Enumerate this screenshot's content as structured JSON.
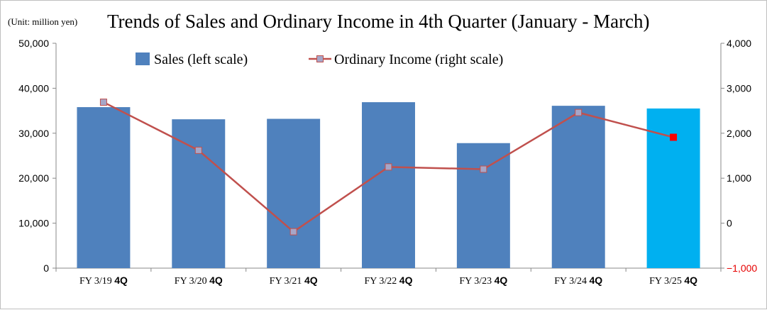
{
  "chart_data": {
    "type": "bar",
    "title": "Trends of Sales and Ordinary Income in 4th Quarter (January - March)",
    "unit_note": "(Unit: million yen)",
    "categories": [
      {
        "fy": "FY 3/19",
        "q": "4Q"
      },
      {
        "fy": "FY 3/20",
        "q": "4Q"
      },
      {
        "fy": "FY 3/21",
        "q": "4Q"
      },
      {
        "fy": "FY 3/22",
        "q": "4Q"
      },
      {
        "fy": "FY 3/23",
        "q": "4Q"
      },
      {
        "fy": "FY 3/24",
        "q": "4Q"
      },
      {
        "fy": "FY 3/25",
        "q": "4Q"
      }
    ],
    "series": [
      {
        "name": "Sales (left scale)",
        "type": "bar",
        "axis": "left",
        "values": [
          35800,
          33100,
          33200,
          36900,
          27800,
          36100,
          35500
        ],
        "color": "#4f81bd",
        "highlight_color": "#00b0f0",
        "highlight_index": 6
      },
      {
        "name": "Ordinary Income (right scale)",
        "type": "line",
        "axis": "right",
        "values": [
          2690,
          1620,
          -190,
          1250,
          1200,
          2460,
          1910
        ],
        "line_color": "#c0504d",
        "marker_color": "#a6a6c8",
        "highlight_marker_color": "#ff0000",
        "highlight_index": 6
      }
    ],
    "left_axis": {
      "min": 0,
      "max": 50000,
      "ticks": [
        "0",
        "10,000",
        "20,000",
        "30,000",
        "40,000",
        "50,000"
      ]
    },
    "right_axis": {
      "min": -1000,
      "max": 4000,
      "ticks": [
        "−1,000",
        "0",
        "1,000",
        "2,000",
        "3,000",
        "4,000"
      ]
    },
    "legend_position": "top",
    "grid": false
  }
}
